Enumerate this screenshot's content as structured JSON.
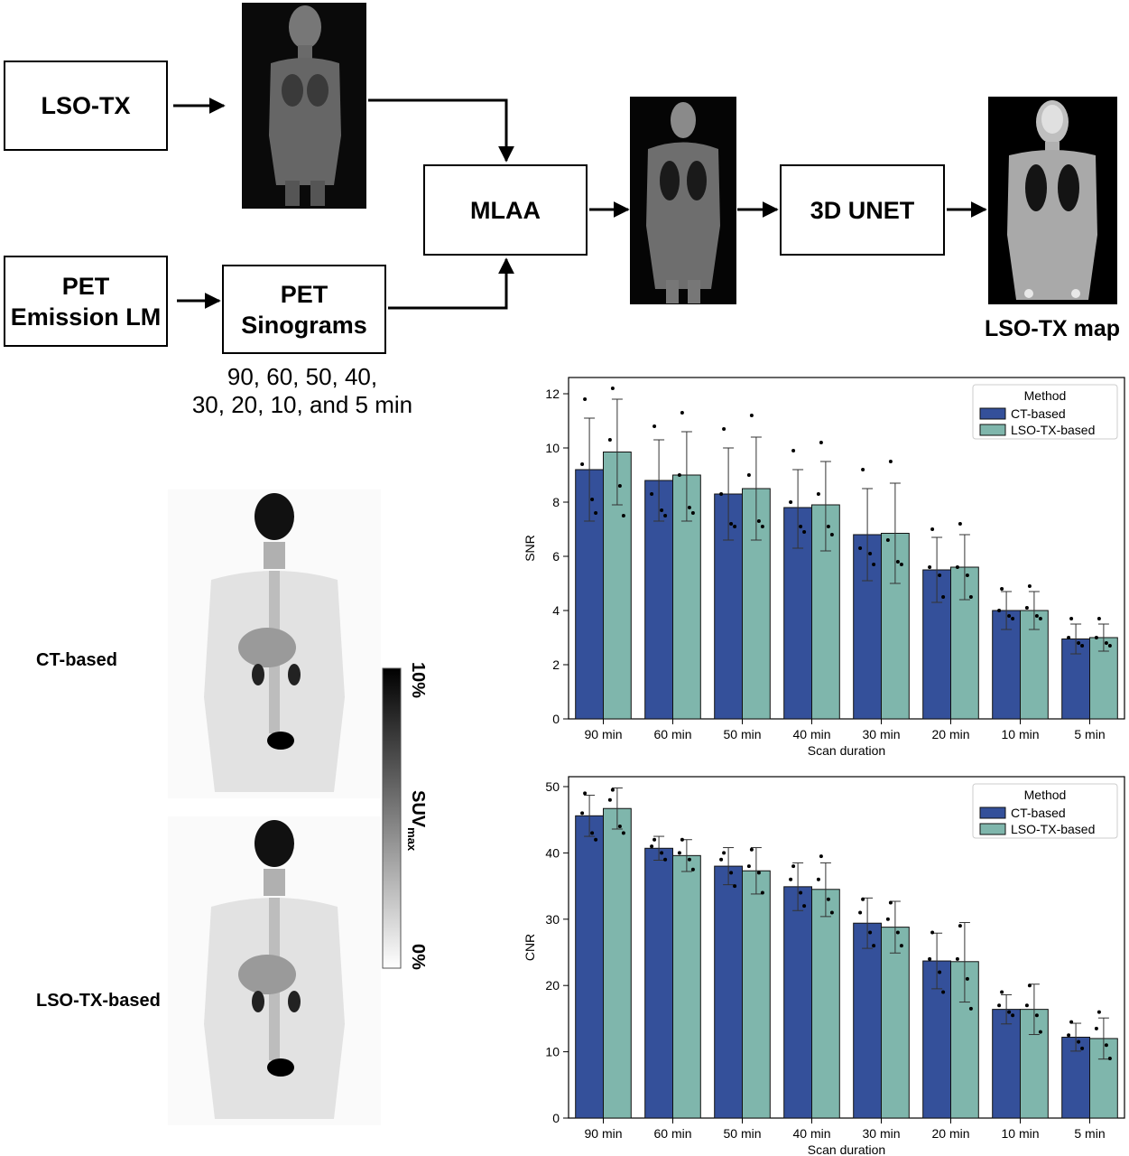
{
  "flow": {
    "lso_tx": "LSO-TX",
    "pet_emission_line1": "PET",
    "pet_emission_line2": "Emission LM",
    "pet_sino_line1": "PET",
    "pet_sino_line2": "Sinograms",
    "mlaa": "MLAA",
    "unet": "3D UNET",
    "map_caption": "LSO-TX map",
    "scan_line1": "90, 60, 50, 40,",
    "scan_line2": "30, 20, 10, and 5 min"
  },
  "mip": {
    "ct_label": "CT-based",
    "lso_label": "LSO-TX-based",
    "colorbar_top": "10%",
    "colorbar_bottom": "0%",
    "colorbar_title": "SUV",
    "colorbar_sub": "max"
  },
  "colors": {
    "ct": "#34509a",
    "lso": "#7fb6ac"
  },
  "chart_data": [
    {
      "type": "bar",
      "categories": [
        "90 min",
        "60 min",
        "50 min",
        "40 min",
        "30 min",
        "20 min",
        "10 min",
        "5 min"
      ],
      "series": [
        {
          "name": "CT-based",
          "values": [
            9.2,
            8.8,
            8.3,
            7.8,
            6.8,
            5.5,
            4.0,
            2.95
          ],
          "err_low": [
            7.3,
            7.3,
            6.6,
            6.3,
            5.1,
            4.3,
            3.3,
            2.4
          ],
          "err_high": [
            11.1,
            10.3,
            10.0,
            9.2,
            8.5,
            6.7,
            4.7,
            3.5
          ]
        },
        {
          "name": "LSO-TX-based",
          "values": [
            9.85,
            9.0,
            8.5,
            7.9,
            6.85,
            5.6,
            4.0,
            3.0
          ],
          "err_low": [
            7.9,
            7.3,
            6.6,
            6.2,
            5.0,
            4.4,
            3.3,
            2.5
          ],
          "err_high": [
            11.8,
            10.6,
            10.4,
            9.5,
            8.7,
            6.8,
            4.7,
            3.5
          ]
        }
      ],
      "points": [
        [
          [
            11.8,
            9.4,
            8.1,
            7.6
          ],
          [
            12.2,
            10.3,
            8.6,
            7.5
          ]
        ],
        [
          [
            10.8,
            8.3,
            7.7,
            7.5
          ],
          [
            11.3,
            9.0,
            7.8,
            7.6
          ]
        ],
        [
          [
            10.7,
            8.3,
            7.2,
            7.1
          ],
          [
            11.2,
            9.0,
            7.3,
            7.1
          ]
        ],
        [
          [
            9.9,
            8.0,
            7.1,
            6.9
          ],
          [
            10.2,
            8.3,
            7.1,
            6.8
          ]
        ],
        [
          [
            9.2,
            6.3,
            6.1,
            5.7
          ],
          [
            9.5,
            6.6,
            5.8,
            5.7
          ]
        ],
        [
          [
            7.0,
            5.6,
            5.3,
            4.5
          ],
          [
            7.2,
            5.6,
            5.3,
            4.5
          ]
        ],
        [
          [
            4.8,
            4.0,
            3.8,
            3.7
          ],
          [
            4.9,
            4.1,
            3.8,
            3.7
          ]
        ],
        [
          [
            3.7,
            3.0,
            2.8,
            2.7
          ],
          [
            3.7,
            3.0,
            2.8,
            2.7
          ]
        ]
      ],
      "xlabel": "Scan duration",
      "ylabel": "SNR",
      "ylim": [
        0,
        12.6
      ],
      "yticks": [
        0,
        2,
        4,
        6,
        8,
        10,
        12
      ],
      "legend_title": "Method",
      "legend_position": "top-right"
    },
    {
      "type": "bar",
      "categories": [
        "90 min",
        "60 min",
        "50 min",
        "40 min",
        "30 min",
        "20 min",
        "10 min",
        "5 min"
      ],
      "series": [
        {
          "name": "CT-based",
          "values": [
            45.6,
            40.7,
            38.0,
            34.9,
            29.4,
            23.7,
            16.4,
            12.2
          ],
          "err_low": [
            42.5,
            38.9,
            35.2,
            31.3,
            25.6,
            19.5,
            14.2,
            10.1
          ],
          "err_high": [
            48.7,
            42.5,
            40.8,
            38.5,
            33.2,
            27.9,
            18.6,
            14.3
          ]
        },
        {
          "name": "LSO-TX-based",
          "values": [
            46.7,
            39.6,
            37.3,
            34.5,
            28.8,
            23.6,
            16.4,
            12.0
          ],
          "err_low": [
            43.6,
            37.2,
            33.8,
            30.4,
            24.9,
            17.5,
            12.6,
            8.9
          ],
          "err_high": [
            49.8,
            42.0,
            40.8,
            38.5,
            32.7,
            29.5,
            20.2,
            15.1
          ]
        }
      ],
      "points": [
        [
          [
            49.0,
            46.0,
            43.0,
            42.0
          ],
          [
            49.5,
            48.0,
            44.0,
            43.0
          ]
        ],
        [
          [
            42.0,
            41.0,
            40.0,
            39.0
          ],
          [
            42.0,
            40.0,
            39.0,
            37.5
          ]
        ],
        [
          [
            40.0,
            39.0,
            37.0,
            35.0
          ],
          [
            40.5,
            38.0,
            37.0,
            34.0
          ]
        ],
        [
          [
            38.0,
            36.0,
            34.0,
            32.0
          ],
          [
            39.5,
            36.0,
            33.0,
            31.0
          ]
        ],
        [
          [
            33.0,
            31.0,
            28.0,
            26.0
          ],
          [
            32.5,
            30.0,
            28.0,
            26.0
          ]
        ],
        [
          [
            28.0,
            24.0,
            22.0,
            19.0
          ],
          [
            29.0,
            24.0,
            21.0,
            16.5
          ]
        ],
        [
          [
            19.0,
            17.0,
            16.0,
            15.5
          ],
          [
            20.0,
            17.0,
            15.5,
            13.0
          ]
        ],
        [
          [
            14.5,
            12.5,
            11.5,
            10.5
          ],
          [
            16.0,
            13.5,
            11.0,
            9.0
          ]
        ]
      ],
      "xlabel": "Scan duration",
      "ylabel": "CNR",
      "ylim": [
        0,
        51.5
      ],
      "yticks": [
        0,
        10,
        20,
        30,
        40,
        50
      ],
      "legend_title": "Method",
      "legend_position": "top-right"
    }
  ]
}
